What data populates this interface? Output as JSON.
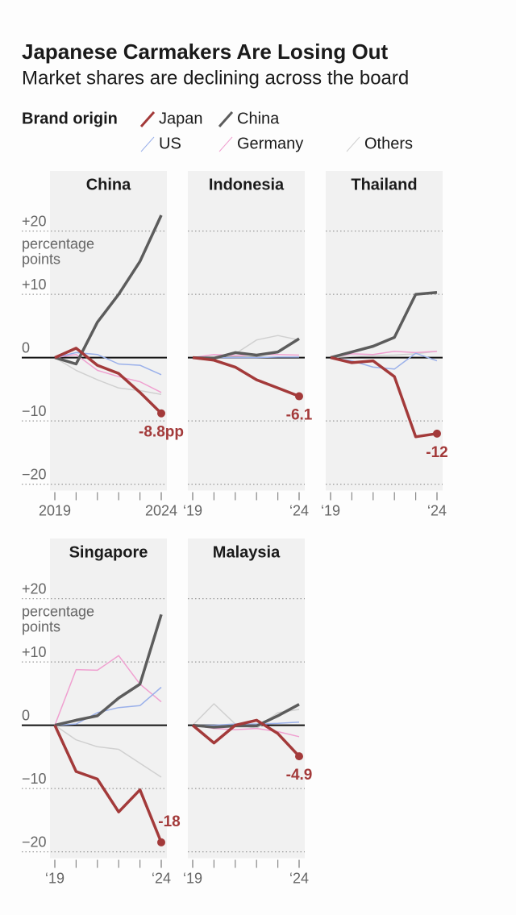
{
  "header": {
    "title": "Japanese Carmakers Are Losing Out",
    "subtitle": "Market shares are declining across the board"
  },
  "legend": {
    "title": "Brand origin"
  },
  "chart_data": [
    {
      "type": "line",
      "title": "China",
      "x": [
        2019,
        2020,
        2021,
        2022,
        2023,
        2024
      ],
      "xlim": [
        2019,
        2024
      ],
      "xticks": [
        {
          "value": 2019,
          "label": "2019"
        },
        {
          "value": 2024,
          "label": "2024"
        }
      ],
      "ylim": [
        -21,
        29
      ],
      "yticks": [
        {
          "value": 20,
          "label": "+20"
        },
        {
          "value": 10,
          "label": "+10"
        },
        0,
        {
          "value": -10,
          "label": "−10"
        },
        {
          "value": -20,
          "label": "−20"
        }
      ],
      "unit_label": "percentage points",
      "series": [
        {
          "name": "Japan",
          "color": "#a33a3a",
          "values": [
            0,
            1.5,
            -1.2,
            -2.5,
            -5.5,
            -8.8
          ],
          "value_labels": [
            null,
            null,
            null,
            null,
            null,
            "-8.8pp"
          ]
        },
        {
          "name": "China",
          "color": "#5c5c5c",
          "values": [
            0,
            -1,
            5.6,
            10,
            15.2,
            22.5
          ]
        },
        {
          "name": "US",
          "color": "#9ab0ea",
          "values": [
            0,
            0.8,
            0.5,
            -1,
            -1.2,
            -2.7
          ]
        },
        {
          "name": "Germany",
          "color": "#f0a0d0",
          "values": [
            0,
            0.5,
            -2,
            -3,
            -3.8,
            -5.5
          ]
        },
        {
          "name": "Others",
          "color": "#d0d0d0",
          "values": [
            0,
            -2,
            -3.5,
            -4.8,
            -5.2,
            -5.8
          ]
        }
      ]
    },
    {
      "type": "line",
      "title": "Indonesia",
      "x": [
        2019,
        2020,
        2021,
        2022,
        2023,
        2024
      ],
      "xlim": [
        2019,
        2024
      ],
      "xticks": [
        {
          "value": 2019,
          "label": "‘19"
        },
        {
          "value": 2024,
          "label": "‘24"
        }
      ],
      "ylim": [
        -21,
        29
      ],
      "yticks": [
        20,
        10,
        0,
        -10,
        -20
      ],
      "series": [
        {
          "name": "Japan",
          "color": "#a33a3a",
          "values": [
            0,
            -0.4,
            -1.5,
            -3.5,
            -4.8,
            -6.1
          ],
          "value_labels": [
            null,
            null,
            null,
            null,
            null,
            "-6.1"
          ]
        },
        {
          "name": "China",
          "color": "#5c5c5c",
          "values": [
            0,
            -0.1,
            0.8,
            0.4,
            0.9,
            3
          ]
        },
        {
          "name": "US",
          "color": "#9ab0ea",
          "values": [
            0,
            0,
            0,
            0,
            0.1,
            0.1
          ]
        },
        {
          "name": "Germany",
          "color": "#f0a0d0",
          "values": [
            0,
            0.5,
            0.3,
            0.5,
            0.5,
            0.4
          ]
        },
        {
          "name": "Others",
          "color": "#d0d0d0",
          "values": [
            0,
            0.2,
            0.6,
            2.8,
            3.5,
            2.8
          ]
        }
      ]
    },
    {
      "type": "line",
      "title": "Thailand",
      "x": [
        2019,
        2020,
        2021,
        2022,
        2023,
        2024
      ],
      "xlim": [
        2019,
        2024
      ],
      "xticks": [
        {
          "value": 2019,
          "label": "‘19"
        },
        {
          "value": 2024,
          "label": "‘24"
        }
      ],
      "ylim": [
        -21,
        29
      ],
      "yticks": [
        20,
        10,
        0,
        -10,
        -20
      ],
      "series": [
        {
          "name": "Japan",
          "color": "#a33a3a",
          "values": [
            0,
            -0.8,
            -0.5,
            -3,
            -12.5,
            -12
          ],
          "value_labels": [
            null,
            null,
            null,
            null,
            null,
            "-12"
          ]
        },
        {
          "name": "China",
          "color": "#5c5c5c",
          "values": [
            0,
            0.9,
            1.8,
            3.2,
            10,
            10.3
          ]
        },
        {
          "name": "US",
          "color": "#9ab0ea",
          "values": [
            0,
            -0.5,
            -1.5,
            -1.8,
            0.7,
            -0.5
          ]
        },
        {
          "name": "Germany",
          "color": "#f0a0d0",
          "values": [
            0,
            0.6,
            0.5,
            1,
            0.8,
            1
          ]
        },
        {
          "name": "Others",
          "color": "#d0d0d0",
          "values": [
            0,
            0.2,
            0.3,
            0.4,
            0.6,
            1
          ]
        }
      ]
    },
    {
      "type": "line",
      "title": "Singapore",
      "x": [
        2019,
        2020,
        2021,
        2022,
        2023,
        2024
      ],
      "xlim": [
        2019,
        2024
      ],
      "xticks": [
        {
          "value": 2019,
          "label": "‘19"
        },
        {
          "value": 2024,
          "label": "‘24"
        }
      ],
      "ylim": [
        -21,
        29
      ],
      "yticks": [
        {
          "value": 20,
          "label": "+20"
        },
        {
          "value": 10,
          "label": "+10"
        },
        0,
        {
          "value": -10,
          "label": "−10"
        },
        {
          "value": -20,
          "label": "−20"
        }
      ],
      "unit_label": "percentage points",
      "series": [
        {
          "name": "Japan",
          "color": "#a33a3a",
          "values": [
            0,
            -7.3,
            -8.5,
            -13.7,
            -10.2,
            -18.5
          ],
          "value_labels": [
            null,
            null,
            null,
            null,
            null,
            "-18"
          ]
        },
        {
          "name": "China",
          "color": "#5c5c5c",
          "values": [
            0,
            0.8,
            1.5,
            4.3,
            6.5,
            17.5
          ]
        },
        {
          "name": "US",
          "color": "#9ab0ea",
          "values": [
            0,
            0.2,
            2,
            2.8,
            3.1,
            6
          ]
        },
        {
          "name": "Germany",
          "color": "#f0a0d0",
          "values": [
            0,
            8.8,
            8.7,
            11,
            6.5,
            3.7
          ]
        },
        {
          "name": "Others",
          "color": "#d0d0d0",
          "values": [
            0,
            -2.3,
            -3.4,
            -3.8,
            -6,
            -8.2
          ]
        }
      ]
    },
    {
      "type": "line",
      "title": "Malaysia",
      "x": [
        2019,
        2020,
        2021,
        2022,
        2023,
        2024
      ],
      "xlim": [
        2019,
        2024
      ],
      "xticks": [
        {
          "value": 2019,
          "label": "‘19"
        },
        {
          "value": 2024,
          "label": "‘24"
        }
      ],
      "ylim": [
        -21,
        29
      ],
      "yticks": [
        20,
        10,
        0,
        -10,
        -20
      ],
      "series": [
        {
          "name": "Japan",
          "color": "#a33a3a",
          "values": [
            0,
            -2.8,
            0,
            0.8,
            -1.3,
            -4.9
          ],
          "value_labels": [
            null,
            null,
            null,
            null,
            null,
            "-4.9"
          ]
        },
        {
          "name": "China",
          "color": "#5c5c5c",
          "values": [
            0,
            -0.3,
            -0.1,
            -0.1,
            1.5,
            3.3
          ]
        },
        {
          "name": "US",
          "color": "#9ab0ea",
          "values": [
            0,
            0,
            0.2,
            0.2,
            0.3,
            0.5
          ]
        },
        {
          "name": "Germany",
          "color": "#f0a0d0",
          "values": [
            0,
            -0.5,
            -0.7,
            -0.5,
            -1,
            -1.8
          ]
        },
        {
          "name": "Others",
          "color": "#d0d0d0",
          "values": [
            0,
            3.4,
            0.2,
            -0.5,
            2,
            2.5
          ]
        }
      ]
    }
  ]
}
